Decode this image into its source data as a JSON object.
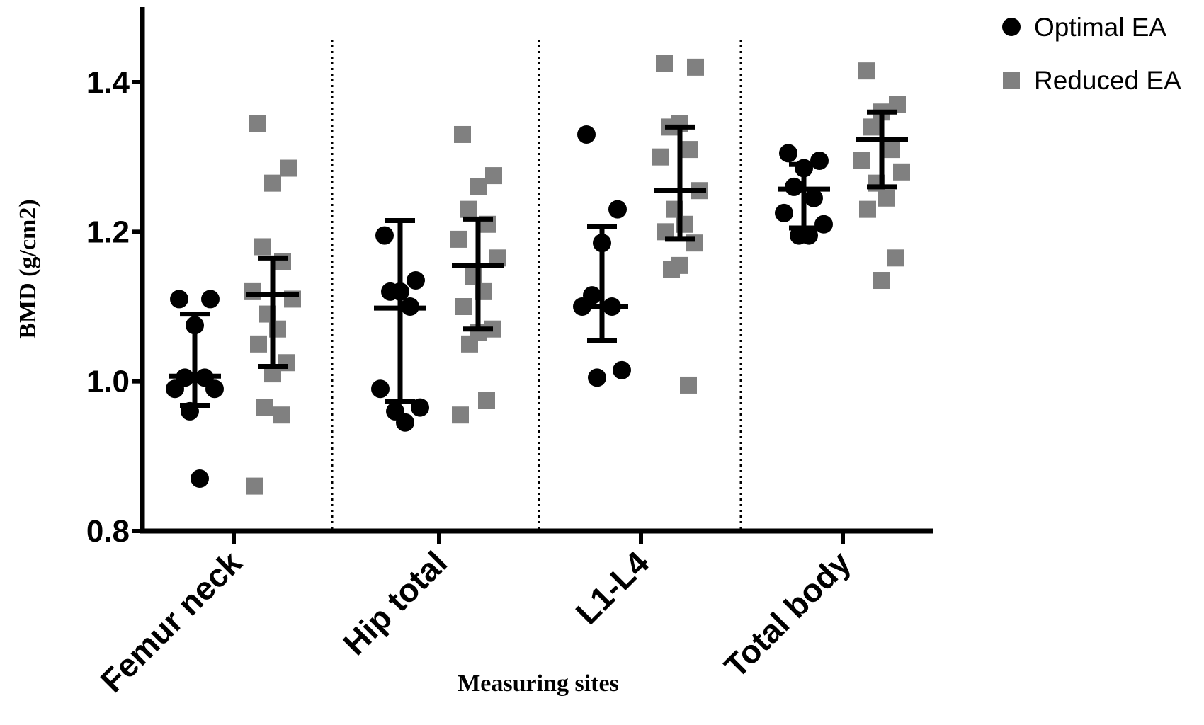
{
  "chart_data": {
    "type": "scatter",
    "xlabel": "Measuring sites",
    "ylabel": "BMD (g/cm2)",
    "ylim": [
      0.8,
      1.5
    ],
    "yticks": [
      "0.8",
      "1.0",
      "1.2",
      "1.4"
    ],
    "categories": [
      "Femur neck",
      "Hip total",
      "L1-L4",
      "Total body"
    ],
    "legend_position": "top-right",
    "series": [
      {
        "name": "Optimal EA",
        "marker": "circle",
        "color": "#000000",
        "groups": [
          {
            "values": [
              1.11,
              1.11,
              1.075,
              1.005,
              1.005,
              0.99,
              0.99,
              0.96,
              0.87
            ],
            "mean": 1.007,
            "error": [
              0.968,
              1.09
            ]
          },
          {
            "values": [
              1.195,
              1.135,
              1.12,
              1.12,
              1.1,
              0.99,
              0.965,
              0.96,
              0.945
            ],
            "mean": 1.098,
            "error": [
              0.973,
              1.215
            ]
          },
          {
            "values": [
              1.33,
              1.23,
              1.185,
              1.115,
              1.1,
              1.1,
              1.015,
              1.005
            ],
            "mean": 1.1,
            "error": [
              1.055,
              1.207
            ]
          },
          {
            "values": [
              1.305,
              1.295,
              1.285,
              1.26,
              1.245,
              1.225,
              1.21,
              1.195,
              1.195
            ],
            "mean": 1.257,
            "error": [
              1.205,
              1.29
            ]
          }
        ]
      },
      {
        "name": "Reduced EA",
        "marker": "square",
        "color": "#808080",
        "groups": [
          {
            "values": [
              1.345,
              1.285,
              1.265,
              1.18,
              1.16,
              1.12,
              1.11,
              1.09,
              1.07,
              1.05,
              1.025,
              1.01,
              0.965,
              0.955,
              0.86
            ],
            "mean": 1.116,
            "error": [
              1.02,
              1.165
            ]
          },
          {
            "values": [
              1.33,
              1.275,
              1.26,
              1.23,
              1.21,
              1.19,
              1.165,
              1.14,
              1.12,
              1.1,
              1.07,
              1.065,
              1.05,
              0.975,
              0.955
            ],
            "mean": 1.155,
            "error": [
              1.07,
              1.217
            ]
          },
          {
            "values": [
              1.425,
              1.42,
              1.345,
              1.34,
              1.31,
              1.3,
              1.255,
              1.23,
              1.21,
              1.2,
              1.185,
              1.155,
              1.15,
              0.995
            ],
            "mean": 1.255,
            "error": [
              1.19,
              1.34
            ]
          },
          {
            "values": [
              1.415,
              1.37,
              1.36,
              1.34,
              1.31,
              1.295,
              1.28,
              1.265,
              1.245,
              1.23,
              1.165,
              1.135
            ],
            "mean": 1.323,
            "error": [
              1.26,
              1.36
            ]
          }
        ]
      }
    ]
  }
}
